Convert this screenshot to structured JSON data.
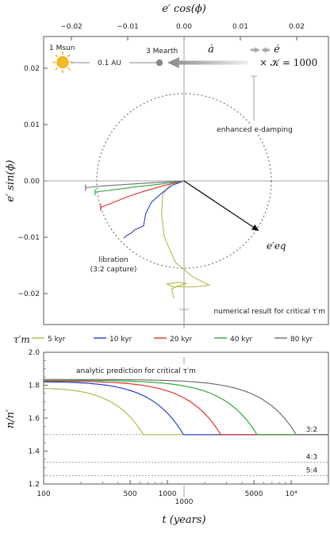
{
  "chart_data": [
    {
      "type": "line",
      "xlabel": "e′ cos(ϕ)",
      "ylabel": "e′ sin(ϕ)",
      "xlim": [
        -0.025,
        0.025
      ],
      "ylim": [
        -0.025,
        0.025
      ],
      "xticks": [
        {
          "v": -0.02,
          "label": "−0.02"
        },
        {
          "v": -0.01,
          "label": "−0.01"
        },
        {
          "v": 0.0,
          "label": "0.00"
        },
        {
          "v": 0.01,
          "label": "0.01"
        },
        {
          "v": 0.02,
          "label": "0.02"
        }
      ],
      "yticks": [
        {
          "v": 0.02,
          "label": "0.02"
        },
        {
          "v": 0.01,
          "label": "0.01"
        },
        {
          "v": 0.0,
          "label": "0.00"
        },
        {
          "v": -0.01,
          "label": "−0.01"
        },
        {
          "v": -0.02,
          "label": "−0.02"
        }
      ],
      "eq_circle_radius": 0.0155,
      "eq_vector": [
        0.0132,
        -0.0088
      ],
      "eq_label": "e′eq",
      "ann_sun": "1 Msun",
      "ann_distance": "0.1 AU",
      "ann_planet": "3 Mearth",
      "ann_adot": "ȧ",
      "ann_edot": "ė",
      "ann_K": "× 𝒦 = 1000",
      "ann_damping": "enhanced e-damping",
      "ann_libration_1": "libration",
      "ann_libration_2": "(3:2 capture)",
      "ann_numerical": "numerical result for critical τ′m",
      "series": [
        {
          "name": "5 kyr",
          "color": "#b5b84a",
          "points": [
            [
              0.0,
              0.0
            ],
            [
              -0.0025,
              -0.0006
            ],
            [
              -0.0038,
              -0.0025
            ],
            [
              -0.004,
              -0.006
            ],
            [
              -0.0035,
              -0.01
            ],
            [
              -0.0015,
              -0.0145
            ],
            [
              0.0015,
              -0.017
            ],
            [
              0.0035,
              -0.018
            ],
            [
              0.0045,
              -0.0185
            ],
            [
              0.002,
              -0.0188
            ],
            [
              -0.002,
              -0.0188
            ],
            [
              -0.003,
              -0.0183
            ],
            [
              -0.0012,
              -0.018
            ],
            [
              0.0005,
              -0.0182
            ],
            [
              -0.0012,
              -0.0187
            ],
            [
              -0.0022,
              -0.0192
            ],
            [
              -0.0018,
              -0.0208
            ]
          ]
        },
        {
          "name": "10 kyr",
          "color": "#2a3ad6",
          "points": [
            [
              0.0,
              0.0
            ],
            [
              -0.0022,
              -0.0008
            ],
            [
              -0.004,
              -0.0022
            ],
            [
              -0.0058,
              -0.0038
            ],
            [
              -0.0068,
              -0.0058
            ],
            [
              -0.0072,
              -0.008
            ],
            [
              -0.0088,
              -0.0087
            ],
            [
              -0.0093,
              -0.0092
            ],
            [
              -0.0102,
              -0.0097
            ],
            [
              -0.0107,
              -0.0102
            ]
          ]
        },
        {
          "name": "20 kyr",
          "color": "#e03030",
          "points": [
            [
              0.0,
              0.0
            ],
            [
              -0.0035,
              -0.0008
            ],
            [
              -0.007,
              -0.0018
            ],
            [
              -0.01,
              -0.0028
            ],
            [
              -0.0125,
              -0.0038
            ],
            [
              -0.0148,
              -0.0047
            ]
          ]
        },
        {
          "name": "40 kyr",
          "color": "#2eaa3a",
          "points": [
            [
              0.0,
              0.0
            ],
            [
              -0.0045,
              -0.0006
            ],
            [
              -0.009,
              -0.0011
            ],
            [
              -0.0128,
              -0.0016
            ],
            [
              -0.0158,
              -0.002
            ]
          ]
        },
        {
          "name": "80 kyr",
          "color": "#707070",
          "points": [
            [
              0.0,
              0.0
            ],
            [
              -0.005,
              -0.0003
            ],
            [
              -0.01,
              -0.0006
            ],
            [
              -0.0145,
              -0.0009
            ],
            [
              -0.0175,
              -0.0012
            ]
          ]
        }
      ]
    },
    {
      "type": "line",
      "xlabel": "t (years)",
      "ylabel": "n/n′",
      "xscale": "log",
      "xlim": [
        100,
        20000
      ],
      "ylim": [
        1.2,
        2.0
      ],
      "xticks": [
        {
          "v": 100,
          "label": "100"
        },
        {
          "v": 500,
          "label": "500"
        },
        {
          "v": 1000,
          "label": "1000"
        },
        {
          "v": 5000,
          "label": "5000"
        },
        {
          "v": 10000,
          "label": "10⁴"
        }
      ],
      "yticks": [
        {
          "v": 2.0,
          "label": "2.0"
        },
        {
          "v": 1.8,
          "label": "1.8"
        },
        {
          "v": 1.6,
          "label": "1.6"
        },
        {
          "v": 1.4,
          "label": "1.4"
        },
        {
          "v": 1.2,
          "label": "1.2"
        }
      ],
      "resonances": [
        {
          "label": "3:2",
          "v": 1.5
        },
        {
          "label": "4:3",
          "v": 1.3333
        },
        {
          "label": "5:4",
          "v": 1.25
        }
      ],
      "critical_marker": {
        "v": 1500,
        "label": "1000"
      },
      "ann_analytic": "analytic prediction for critical τ′m",
      "legend_title": "τ′m",
      "series": [
        {
          "name": "5 kyr",
          "color": "#b5b84a",
          "y0": 1.78,
          "t_capture": 640
        },
        {
          "name": "10 kyr",
          "color": "#2a3ad6",
          "y0": 1.82,
          "t_capture": 1350
        },
        {
          "name": "20 kyr",
          "color": "#e03030",
          "y0": 1.825,
          "t_capture": 2700
        },
        {
          "name": "40 kyr",
          "color": "#2eaa3a",
          "y0": 1.83,
          "t_capture": 5300
        },
        {
          "name": "80 kyr",
          "color": "#707070",
          "y0": 1.835,
          "t_capture": 11000
        }
      ]
    }
  ]
}
